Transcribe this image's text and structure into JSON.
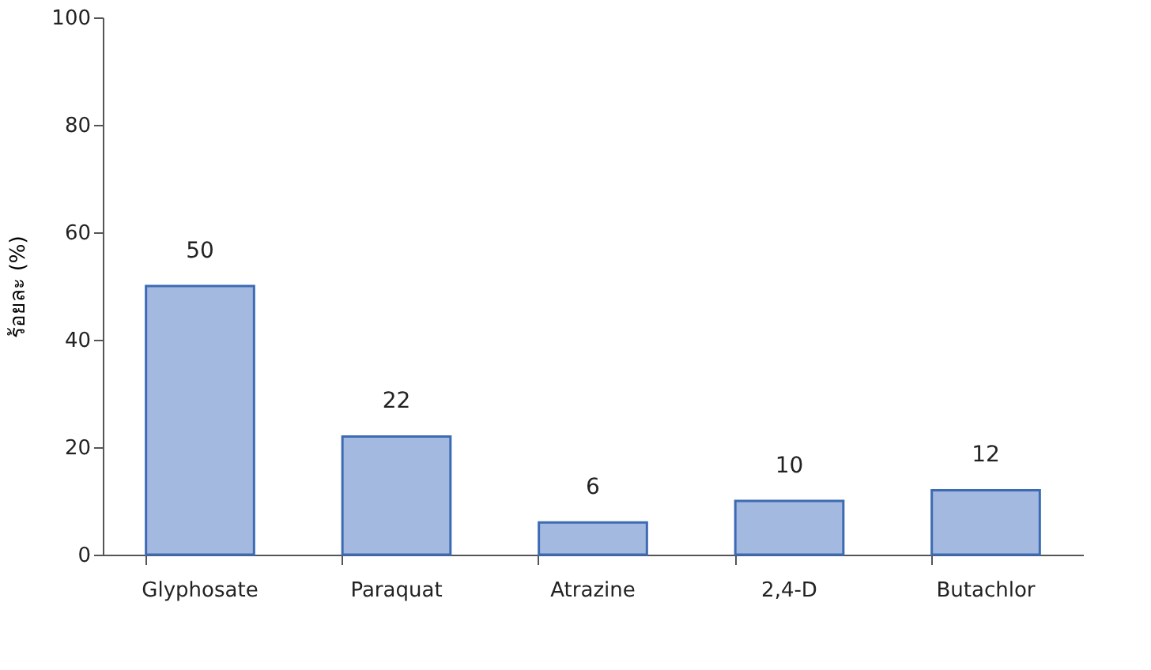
{
  "chart_data": {
    "type": "bar",
    "ylabel": "ร้อยละ (%)",
    "categories": [
      "Glyphosate",
      "Paraquat",
      "Atrazine",
      "2,4-D",
      "Butachlor"
    ],
    "values": [
      50,
      22,
      6,
      10,
      12
    ],
    "color": "#a3b9e0",
    "ylim": [
      0,
      100
    ],
    "yticks": [
      0,
      20,
      40,
      60,
      80,
      100
    ],
    "data_labels": true,
    "grid": false
  }
}
